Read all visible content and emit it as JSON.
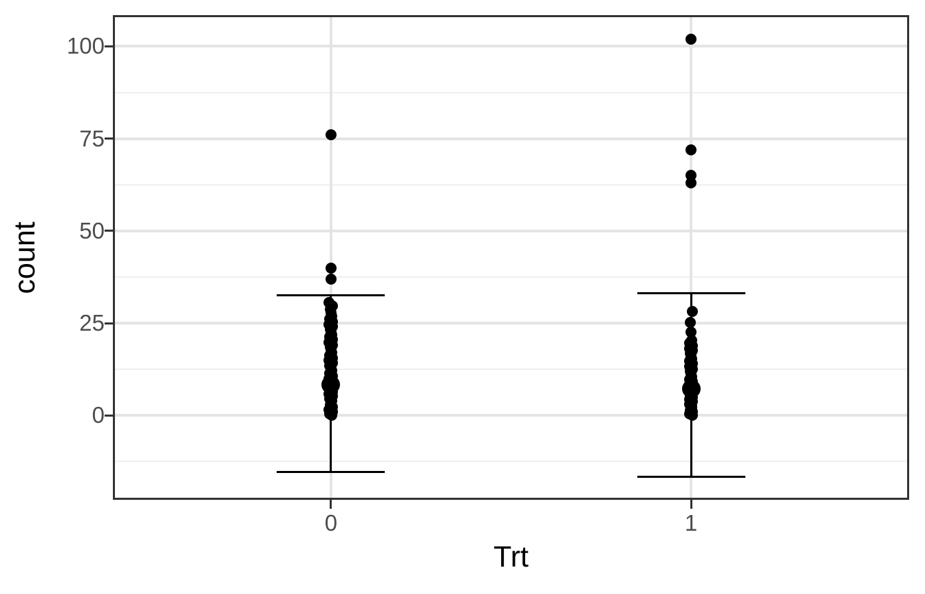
{
  "style": {
    "background": "#ffffff",
    "panel_border_color": "#333333",
    "grid_major_color": "#e4e4e4",
    "grid_minor_color": "#efefef",
    "tick_mark_color": "#333333",
    "tick_label_color": "#4d4d4d",
    "axis_title_color": "#000000",
    "point_color": "#000000"
  },
  "chart_data": {
    "type": "scatter",
    "title": "",
    "xlabel": "Trt",
    "ylabel": "count",
    "x_categories": [
      "0",
      "1"
    ],
    "y_ticks": [
      0,
      25,
      50,
      75,
      100
    ],
    "y_minor_gridlines": [
      -12.5,
      12.5,
      37.5,
      62.5,
      87.5
    ],
    "ylim": [
      -22.3,
      107.9
    ],
    "grid": "on",
    "legend": "none",
    "groups": [
      {
        "label": "0",
        "outliers": [
          76,
          40,
          37
        ],
        "points": [
          76,
          40,
          37,
          30.6,
          29.6,
          28.7,
          27.8,
          26.9,
          26.1,
          25.4,
          24.7,
          24.0,
          23.3,
          22.6,
          21.9,
          21.2,
          20.5,
          19.8,
          19.1,
          18.4,
          17.7,
          17.0,
          16.3,
          15.6,
          14.9,
          14.2,
          13.5,
          12.8,
          12.1,
          11.4,
          10.7,
          10.0,
          9.4,
          8.8,
          8.2,
          7.6,
          7.0,
          6.4,
          5.8,
          5.2,
          4.6,
          4.0,
          3.4,
          2.8,
          2.2,
          1.6,
          1.0,
          0.5,
          0.1
        ],
        "mean_point": 8.3,
        "errorbar": {
          "upper": 32.6,
          "lower": -15.4,
          "cap_width_units": 0.3
        }
      },
      {
        "label": "1",
        "outliers": [
          102,
          72,
          65,
          63
        ],
        "points": [
          102,
          72,
          65,
          63,
          28.2,
          25.2,
          22.6,
          20.4,
          19.6,
          18.9,
          18.2,
          17.5,
          16.8,
          16.1,
          15.4,
          14.7,
          14.0,
          13.3,
          12.6,
          11.9,
          11.2,
          10.5,
          9.8,
          9.1,
          8.5,
          7.9,
          7.3,
          6.7,
          6.1,
          5.5,
          4.9,
          4.3,
          3.7,
          3.1,
          2.5,
          1.9,
          1.4,
          0.9,
          0.4,
          0.0
        ],
        "mean_point": 7.3,
        "errorbar": {
          "upper": 33.1,
          "lower": -16.7,
          "cap_width_units": 0.3
        }
      }
    ]
  }
}
